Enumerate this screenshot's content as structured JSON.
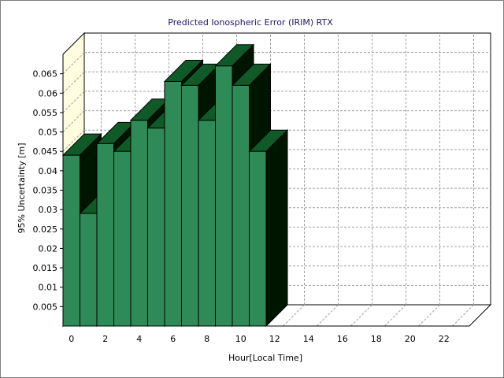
{
  "chart_data": {
    "type": "bar",
    "title": "Predicted Ionospheric Error (IRIM) RTX",
    "xlabel": "Hour[Local Time]",
    "ylabel": "95% Uncertainty [m]",
    "x": [
      0,
      1,
      2,
      3,
      4,
      5,
      6,
      7,
      8,
      9,
      10,
      11
    ],
    "values": [
      0.044,
      0.029,
      0.047,
      0.045,
      0.053,
      0.051,
      0.063,
      0.062,
      0.053,
      0.067,
      0.062,
      0.045
    ],
    "x_ticks": [
      "0",
      "2",
      "4",
      "6",
      "8",
      "10",
      "12",
      "14",
      "16",
      "18",
      "20",
      "22"
    ],
    "y_ticks": [
      "0.005",
      "0.01",
      "0.015",
      "0.02",
      "0.025",
      "0.03",
      "0.035",
      "0.04",
      "0.045",
      "0.05",
      "0.055",
      "0.06",
      "0.065"
    ],
    "xlim": [
      0,
      24
    ],
    "ylim": [
      0,
      0.07
    ],
    "grid": true,
    "legend": "none",
    "colors": {
      "bar_front": "#2e8b57",
      "bar_top": "#0f5a26",
      "bar_side": "#001500",
      "back_wall": "#ffffff",
      "side_wall": "#fffde0",
      "grid": "#a0a0a0",
      "title": "#1a1a66"
    }
  }
}
